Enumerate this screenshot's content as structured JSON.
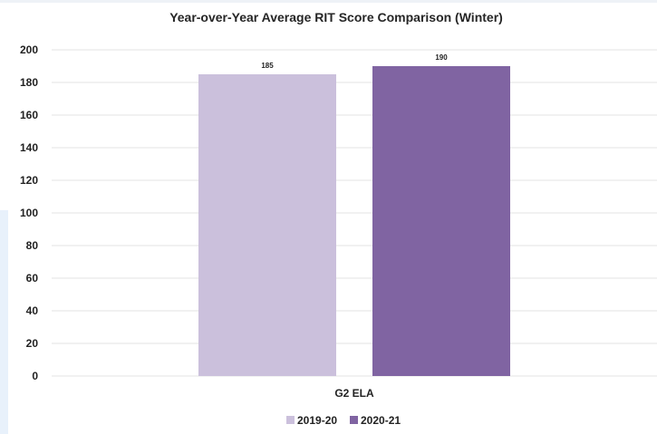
{
  "chart_data": {
    "type": "bar",
    "title": "Year-over-Year Average RIT Score Comparison (Winter)",
    "xlabel": "",
    "ylabel": "",
    "categories": [
      "G2 ELA"
    ],
    "series": [
      {
        "name": "2019-20",
        "values": [
          185
        ],
        "color": "#cbc0dc"
      },
      {
        "name": "2020-21",
        "values": [
          190
        ],
        "color": "#8064a2"
      }
    ],
    "ylim": [
      0,
      200
    ],
    "yticks": [
      0,
      20,
      40,
      60,
      80,
      100,
      120,
      140,
      160,
      180,
      200
    ],
    "grid": true,
    "legend": "bottom-center",
    "data_labels": true
  }
}
